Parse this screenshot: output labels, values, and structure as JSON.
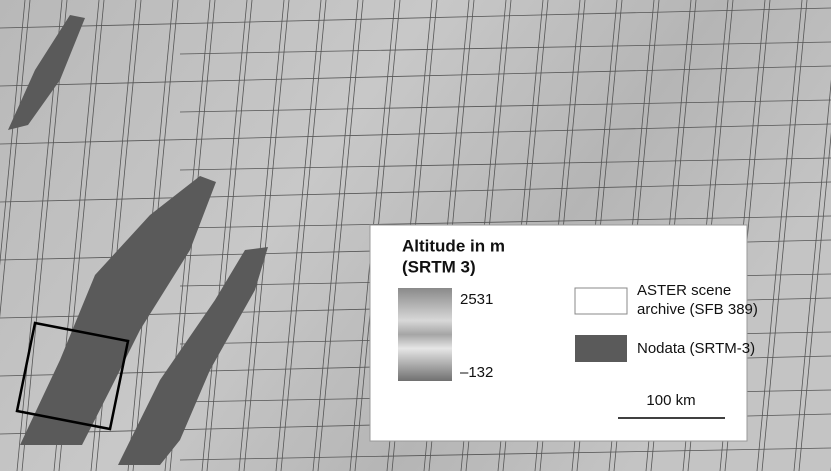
{
  "legend": {
    "title": [
      "Altitude in m",
      "(SRTM 3)"
    ],
    "scale_max": "2531",
    "scale_min": "–132",
    "items": [
      {
        "label": [
          "ASTER scene",
          "archive (SFB 389)"
        ]
      },
      {
        "label": [
          "Nodata (SRTM-3)"
        ]
      }
    ],
    "scale_bar": "100 km"
  }
}
